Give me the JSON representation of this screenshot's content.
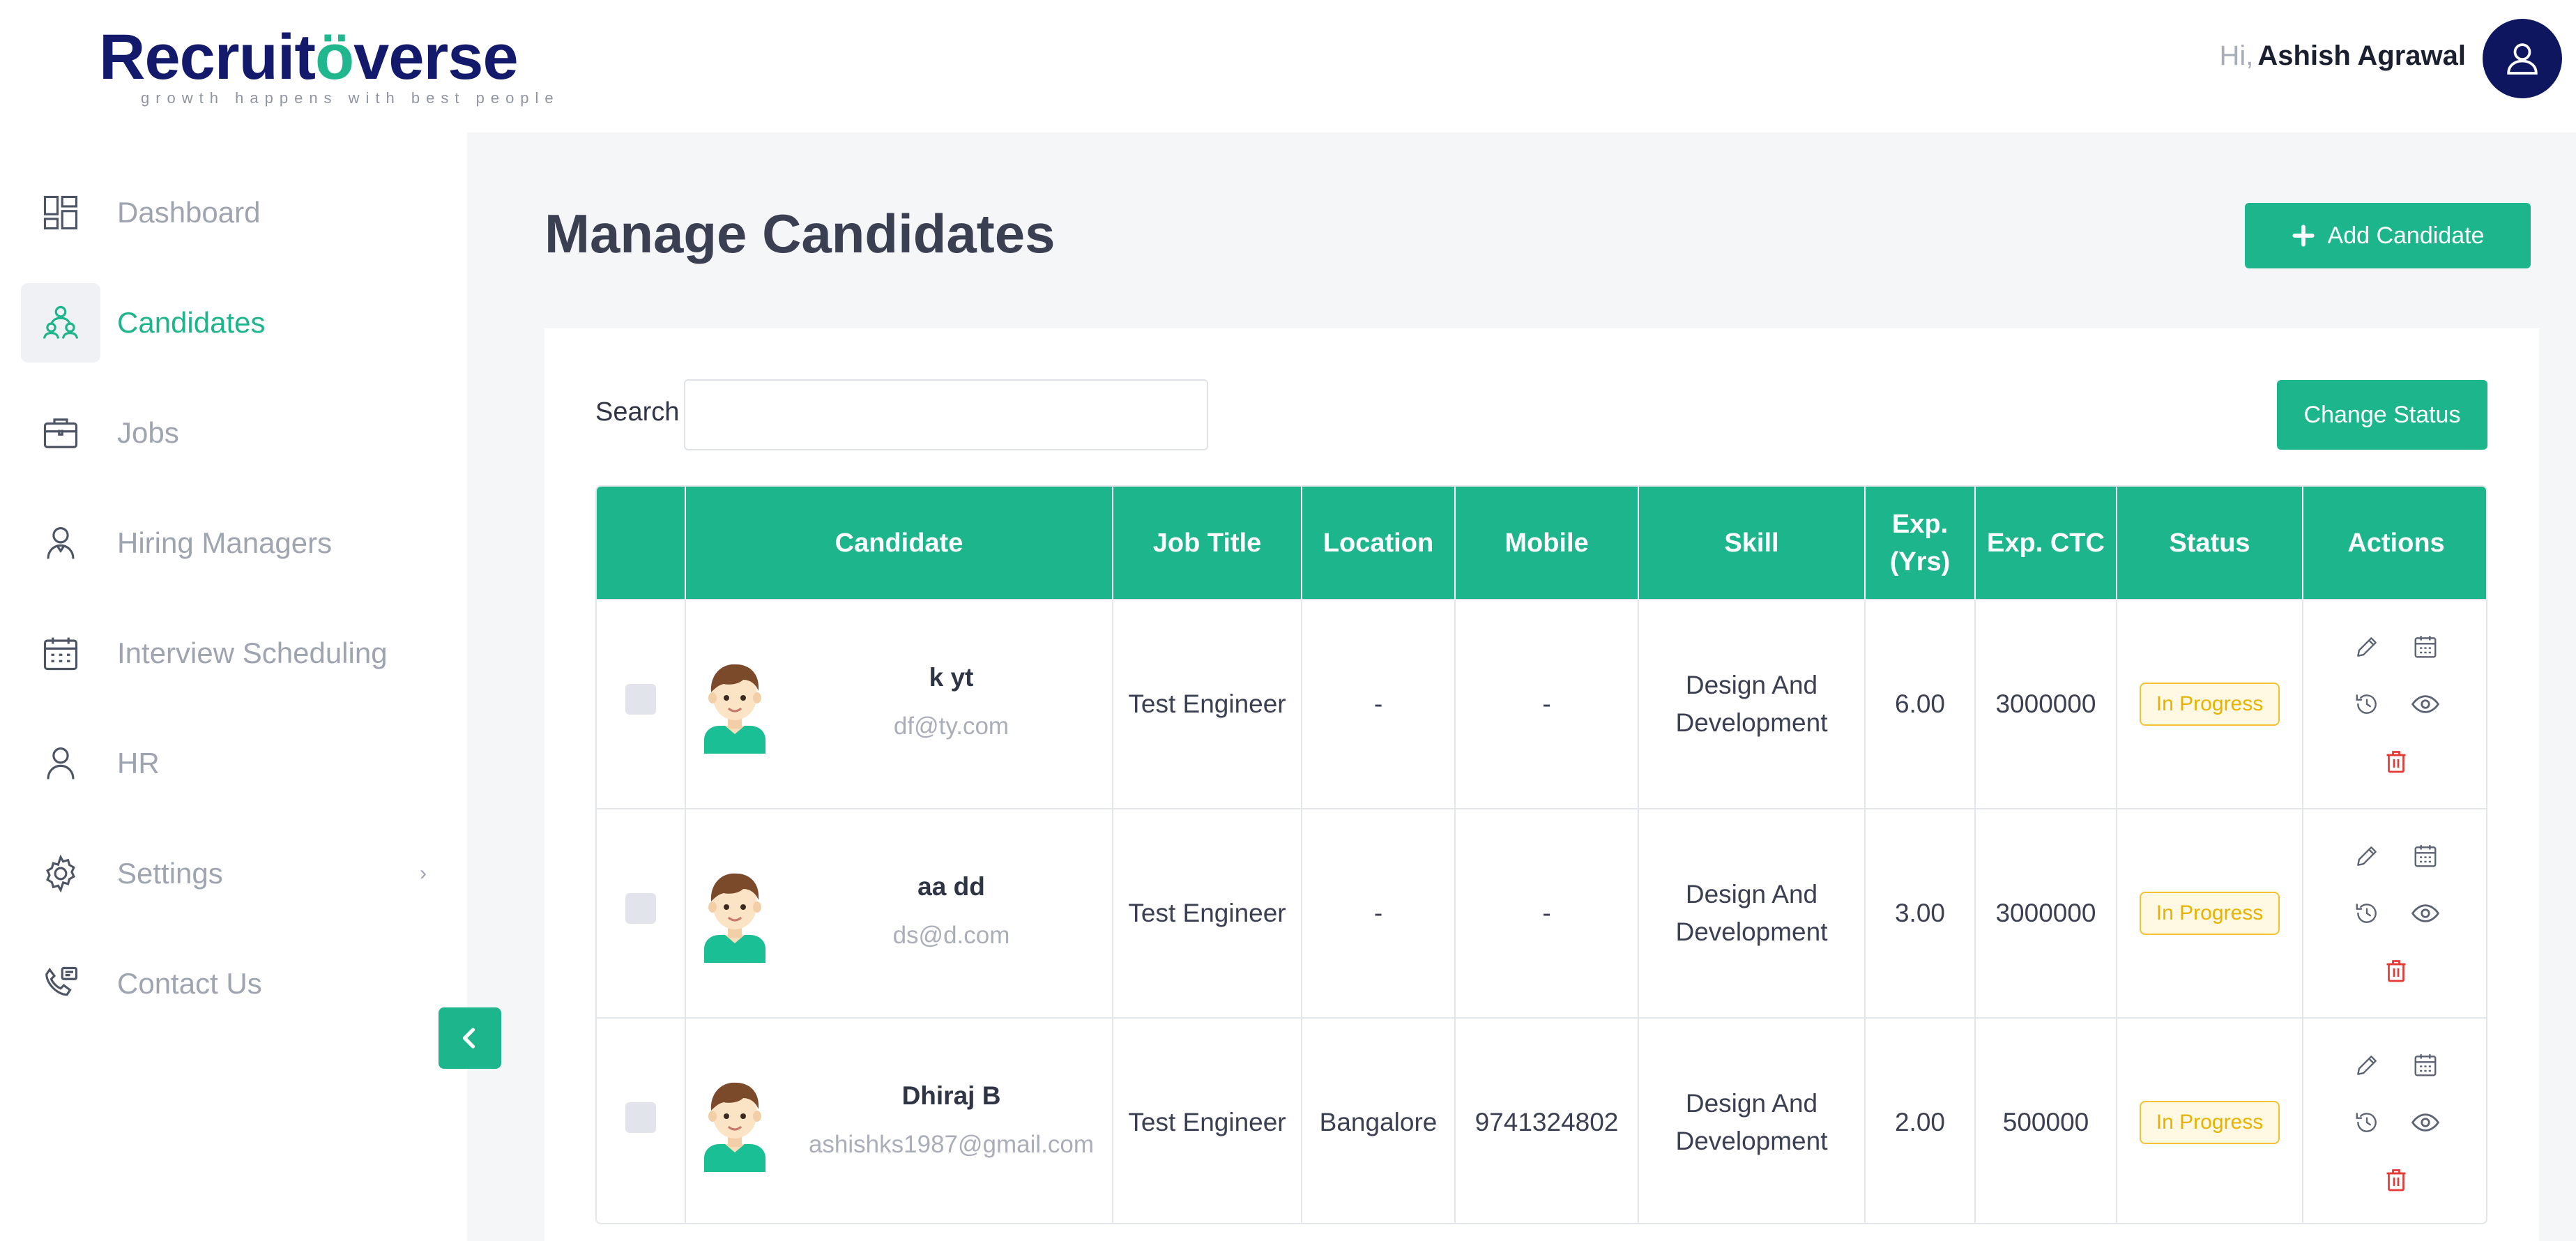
{
  "header": {
    "brand": "Recruit",
    "brand_mark": "ö",
    "brand_suffix": "verse",
    "tagline": "growth happens with best people",
    "greeting": "Hi,",
    "user_name": "Ashish Agrawal",
    "avatar_icon": "user-icon"
  },
  "colors": {
    "accent": "#1db58c",
    "navy": "#0f1660",
    "status_warning": "#f2c230",
    "delete": "#e53935"
  },
  "sidebar": {
    "items": [
      {
        "label": "Dashboard",
        "icon": "dashboard-icon"
      },
      {
        "label": "Candidates",
        "icon": "candidates-icon",
        "active": true
      },
      {
        "label": "Jobs",
        "icon": "briefcase-icon"
      },
      {
        "label": "Hiring Managers",
        "icon": "person-icon"
      },
      {
        "label": "Interview Scheduling",
        "icon": "calendar-icon"
      },
      {
        "label": "HR",
        "icon": "person-icon"
      },
      {
        "label": "Settings",
        "icon": "gear-icon",
        "chevron": "›"
      },
      {
        "label": "Contact Us",
        "icon": "phone-icon"
      }
    ],
    "collapse_icon": "chevron-left-icon"
  },
  "main": {
    "title": "Manage Candidates",
    "add_button": "Add Candidate",
    "search_label": "Search",
    "search_value": "",
    "change_status_button": "Change Status"
  },
  "table": {
    "columns": [
      "",
      "Candidate",
      "Job Title",
      "Location",
      "Mobile",
      "Skill",
      "Exp. (Yrs)",
      "Exp. CTC",
      "Status",
      "Actions"
    ],
    "rows": [
      {
        "name": "k yt",
        "email": "df@ty.com",
        "job_title": "Test Engineer",
        "location": "-",
        "mobile": "-",
        "skill": "Design And Development",
        "exp_yrs": "6.00",
        "exp_ctc": "3000000",
        "status": "In Progress"
      },
      {
        "name": "aa dd",
        "email": "ds@d.com",
        "job_title": "Test Engineer",
        "location": "-",
        "mobile": "-",
        "skill": "Design And Development",
        "exp_yrs": "3.00",
        "exp_ctc": "3000000",
        "status": "In Progress"
      },
      {
        "name": "Dhiraj B",
        "email": "ashishks1987@gmail.com",
        "job_title": "Test Engineer",
        "location": "Bangalore",
        "mobile": "9741324802",
        "skill": "Design And Development",
        "exp_yrs": "2.00",
        "exp_ctc": "500000",
        "status": "In Progress"
      }
    ],
    "action_icons": [
      "edit-icon",
      "calendar-icon",
      "history-icon",
      "view-icon",
      "delete-icon"
    ]
  }
}
